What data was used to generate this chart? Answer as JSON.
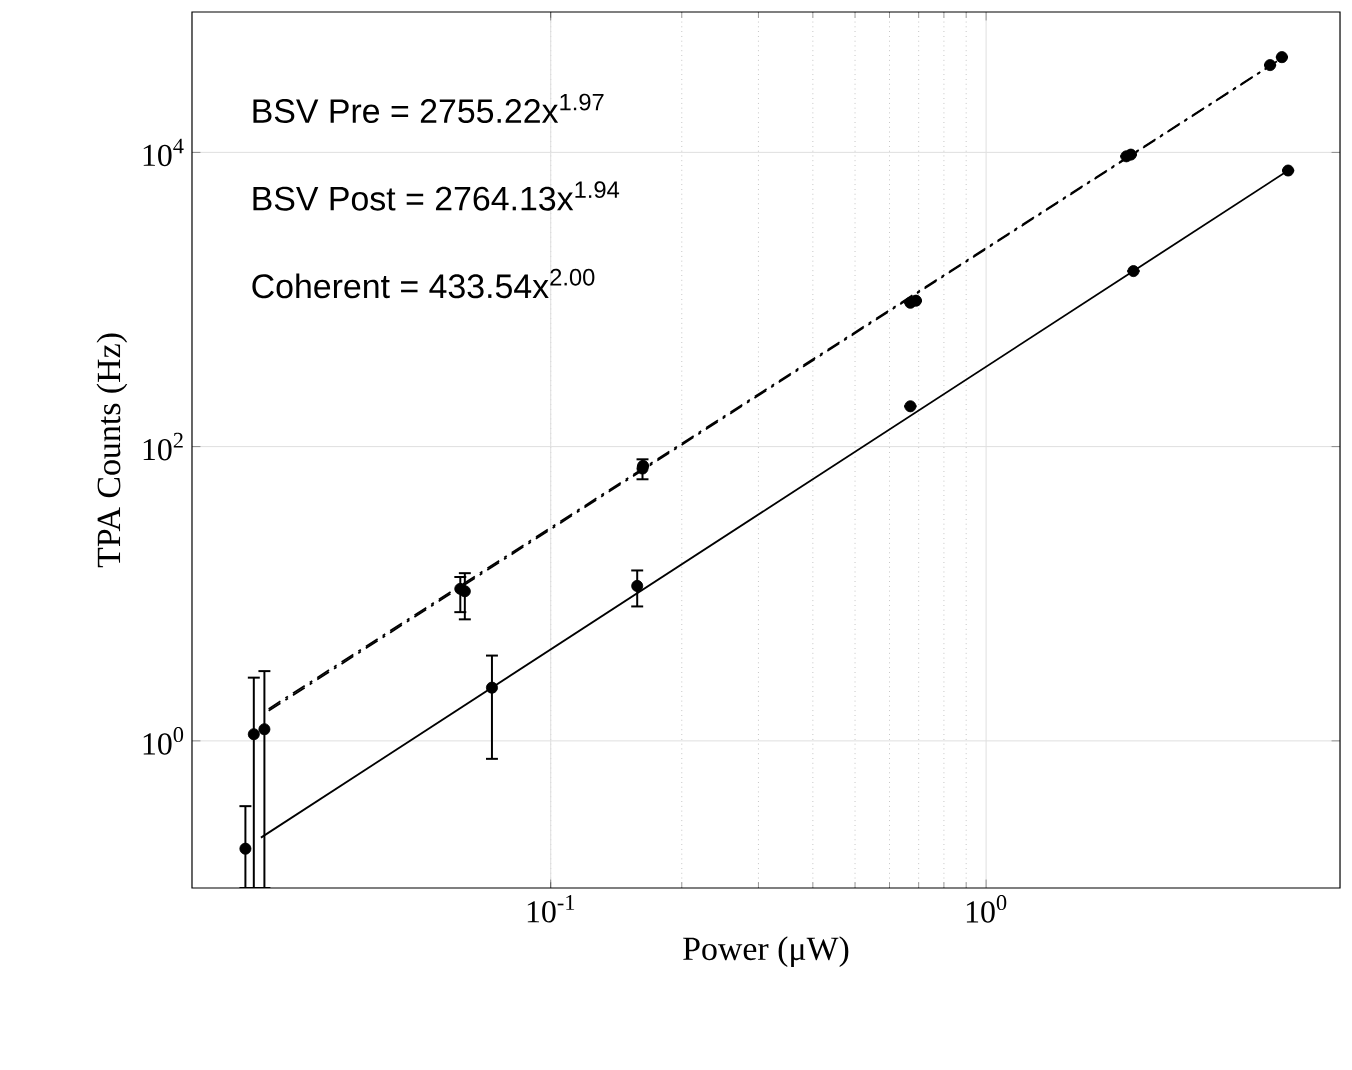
{
  "chart_data": {
    "type": "scatter",
    "xlabel": "Power (μW)",
    "ylabel": "TPA Counts (Hz)",
    "log": "xy",
    "grid": true,
    "marker": "circle",
    "xlim": [
      0.015,
      6.5
    ],
    "ylim": [
      0.1,
      90000
    ],
    "xticks": [
      {
        "value": 0.1,
        "label": "10$^{-1}$"
      },
      {
        "value": 1,
        "label": "10$^{0}$"
      }
    ],
    "yticks": [
      {
        "value": 1,
        "label": "10$^{0}$"
      },
      {
        "value": 100,
        "label": "10$^{2}$"
      },
      {
        "value": 10000,
        "label": "10$^{4}$"
      }
    ],
    "annotations": [
      "BSV Pre = 2755.22x$^{1.97}$",
      "BSV Post = 2764.13x$^{1.94}$",
      "Coherent = 433.54x$^{2.00}$"
    ],
    "series": [
      {
        "type": "scatter",
        "color": "#000000",
        "x": [
          0.0208,
          0.0635,
          0.1625,
          0.69,
          2.15,
          4.78
        ],
        "values": [
          1.11,
          10.4,
          71,
          982,
          9660,
          44400
        ],
        "errors": [
          [
            0.1,
            2.69
          ],
          [
            6.7,
            13.8
          ],
          [
            60,
            82
          ],
          null,
          null,
          null
        ]
      },
      {
        "type": "scatter",
        "color": "#000000",
        "x": [
          0.022,
          0.062,
          0.163,
          0.67,
          2.1,
          4.49
        ],
        "values": [
          1.2,
          10.8,
          74,
          950,
          9400,
          39200
        ],
        "errors": [
          [
            0.1,
            2.98
          ],
          [
            7.5,
            13
          ],
          null,
          null,
          null,
          null
        ]
      },
      {
        "type": "scatter",
        "color": "#000000",
        "x": [
          0.0199,
          0.0733,
          0.158,
          0.67,
          2.18,
          4.94
        ],
        "values": [
          0.185,
          2.3,
          11.3,
          188,
          1560,
          7530
        ],
        "errors": [
          [
            0.1,
            0.36
          ],
          [
            0.755,
            3.8
          ],
          [
            8.2,
            14.4
          ],
          null,
          null,
          null
        ]
      },
      {
        "type": "line",
        "color": "#000000",
        "marker": "none",
        "line_style": "dashdot",
        "x": [
          0.0225,
          4.85
        ],
        "values": [
          1.65,
          45000
        ]
      },
      {
        "type": "line",
        "color": "#000000",
        "marker": "none",
        "line_style": "dashdot",
        "x": [
          0.0225,
          4.6
        ],
        "values": [
          1.6,
          40500
        ]
      },
      {
        "type": "line",
        "color": "#000000",
        "marker": "none",
        "line_style": "solid",
        "x": [
          0.0216,
          4.94
        ],
        "values": [
          0.22,
          7530
        ]
      }
    ]
  }
}
